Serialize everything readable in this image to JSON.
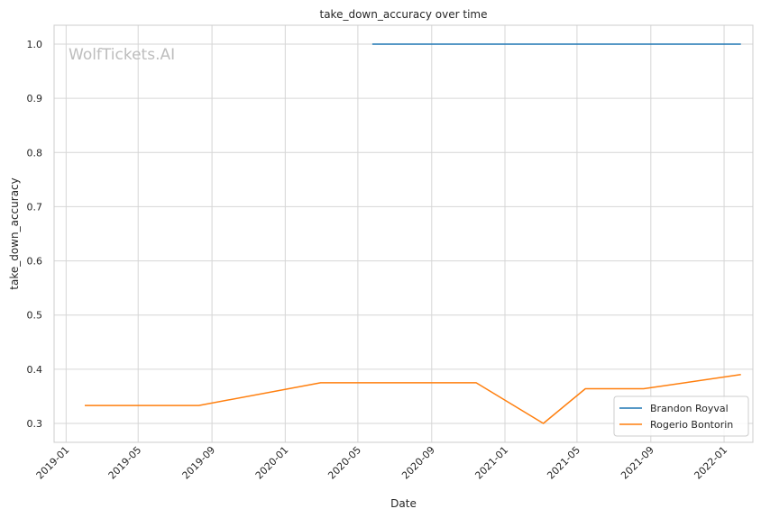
{
  "chart_data": {
    "type": "line",
    "title": "take_down_accuracy over time",
    "xlabel": "Date",
    "ylabel": "take_down_accuracy",
    "watermark": "WolfTickets.AI",
    "x_tick_labels": [
      "2019-01",
      "2019-05",
      "2019-09",
      "2020-01",
      "2020-05",
      "2020-09",
      "2021-01",
      "2021-05",
      "2021-09",
      "2022-01"
    ],
    "x_ticks": [
      "2019-01-01",
      "2019-05-01",
      "2019-09-01",
      "2020-01-01",
      "2020-05-01",
      "2020-09-01",
      "2021-01-01",
      "2021-05-01",
      "2021-09-01",
      "2022-01-01"
    ],
    "y_tick_labels": [
      "0.3",
      "0.4",
      "0.5",
      "0.6",
      "0.7",
      "0.8",
      "0.9",
      "1.0"
    ],
    "y_ticks": [
      0.3,
      0.4,
      0.5,
      0.6,
      0.7,
      0.8,
      0.9,
      1.0
    ],
    "xlim": [
      "2018-12-12",
      "2022-02-18"
    ],
    "ylim": [
      0.265,
      1.035
    ],
    "grid": true,
    "legend_position": "bottom-right",
    "series": [
      {
        "name": "Brandon Royval",
        "color": "#1f77b4",
        "x": [
          "2020-05-25",
          "2022-01-29"
        ],
        "y": [
          1.0,
          1.0
        ]
      },
      {
        "name": "Rogerio Bontorin",
        "color": "#ff7f0e",
        "x": [
          "2019-02-01",
          "2019-08-10",
          "2020-02-29",
          "2020-11-14",
          "2021-03-06",
          "2021-05-15",
          "2021-08-20",
          "2022-01-29"
        ],
        "y": [
          0.333,
          0.333,
          0.375,
          0.375,
          0.3,
          0.364,
          0.364,
          0.39
        ]
      }
    ]
  }
}
